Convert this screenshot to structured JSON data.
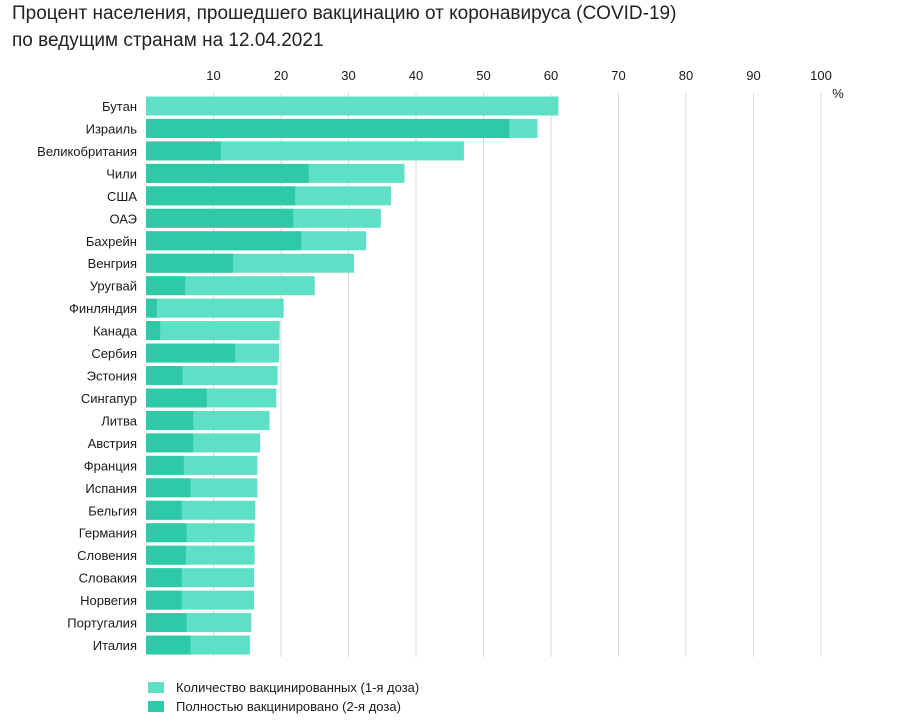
{
  "title_lines": [
    "Процент населения, прошедшего вакцинацию от коронавируса (COVID-19)",
    "по ведущим странам на 12.04.2021"
  ],
  "chart_data": {
    "type": "bar",
    "orientation": "horizontal",
    "stacked": "overlay",
    "unit": "%",
    "xlim": [
      0,
      100
    ],
    "ticks": [
      10,
      20,
      30,
      40,
      50,
      60,
      70,
      80,
      90,
      100
    ],
    "grid": true,
    "legend_position": "bottom-left",
    "categories": [
      "Бутан",
      "Израиль",
      "Великобритания",
      "Чили",
      "США",
      "ОАЭ",
      "Бахрейн",
      "Венгрия",
      "Уругвай",
      "Финляндия",
      "Канада",
      "Сербия",
      "Эстония",
      "Сингапур",
      "Литва",
      "Австрия",
      "Франция",
      "Испания",
      "Бельгия",
      "Германия",
      "Словения",
      "Словакия",
      "Норвегия",
      "Португалия",
      "Италия"
    ],
    "series": [
      {
        "name": "Количество вакцинированных (1-я доза)",
        "color": "#5ee0c6",
        "values": [
          61.1,
          58.0,
          47.1,
          38.3,
          36.3,
          34.8,
          32.6,
          30.8,
          25.0,
          20.4,
          19.8,
          19.7,
          19.5,
          19.3,
          18.3,
          16.9,
          16.5,
          16.5,
          16.2,
          16.1,
          16.1,
          16.0,
          16.0,
          15.6,
          15.4
        ]
      },
      {
        "name": "Полностью вакцинировано (2-я доза)",
        "color": "#2ecaa8",
        "values": [
          0,
          53.8,
          11.1,
          24.1,
          22.1,
          21.8,
          23.0,
          12.9,
          5.8,
          1.6,
          2.1,
          13.2,
          5.4,
          9.0,
          7.0,
          7.0,
          5.6,
          6.6,
          5.3,
          6.0,
          5.9,
          5.3,
          5.3,
          6.0,
          6.6
        ]
      }
    ]
  }
}
